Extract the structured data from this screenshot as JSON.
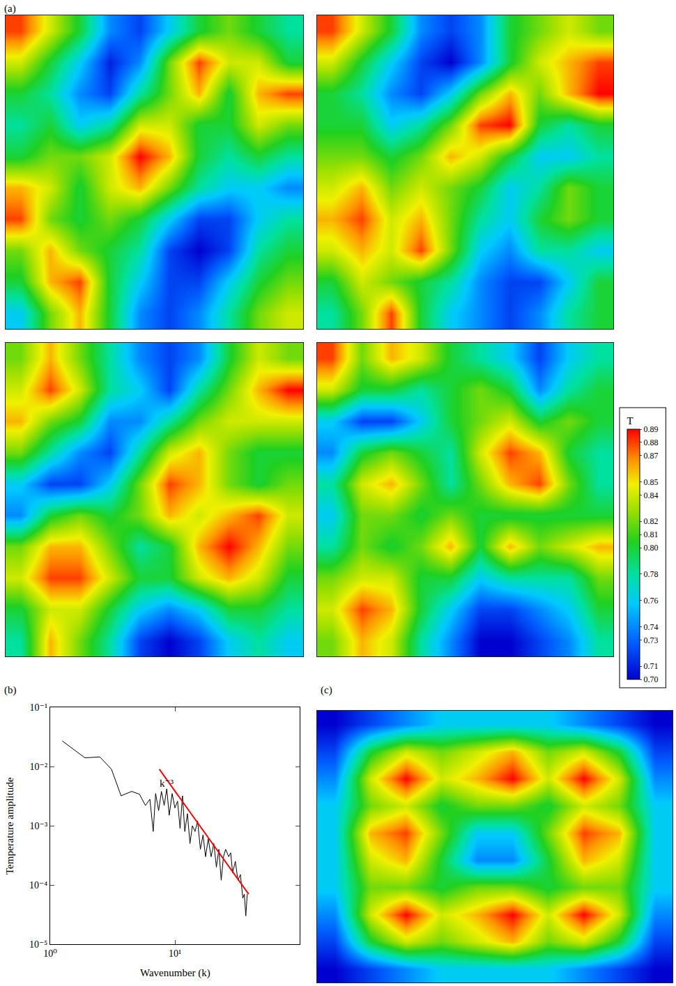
{
  "chart_data": [
    {
      "type": "heatmap",
      "panel": "(a)",
      "tick_labels": false,
      "colorbar": {
        "title": "T",
        "range": [
          0.7,
          0.89
        ],
        "ticks": [
          0.89,
          0.88,
          0.87,
          0.85,
          0.84,
          0.82,
          0.81,
          {
            "value": 0.8,
            "label": "0.80"
          },
          0.78,
          0.76,
          0.74,
          0.73,
          0.71,
          {
            "value": 0.7,
            "label": "0.70"
          }
        ]
      },
      "cells": [
        [
          [
            0.88,
            0.84,
            0.8,
            0.74,
            0.72,
            0.76,
            0.8,
            0.82,
            0.8,
            0.78
          ],
          [
            0.84,
            0.8,
            0.76,
            0.71,
            0.74,
            0.82,
            0.88,
            0.84,
            0.84,
            0.8
          ],
          [
            0.8,
            0.78,
            0.74,
            0.72,
            0.78,
            0.82,
            0.86,
            0.8,
            0.86,
            0.88
          ],
          [
            0.78,
            0.8,
            0.76,
            0.78,
            0.84,
            0.84,
            0.8,
            0.8,
            0.84,
            0.82
          ],
          [
            0.8,
            0.82,
            0.82,
            0.84,
            0.89,
            0.86,
            0.8,
            0.78,
            0.8,
            0.78
          ],
          [
            0.86,
            0.84,
            0.8,
            0.84,
            0.86,
            0.82,
            0.78,
            0.76,
            0.76,
            0.74
          ],
          [
            0.88,
            0.82,
            0.8,
            0.82,
            0.8,
            0.76,
            0.72,
            0.72,
            0.76,
            0.78
          ],
          [
            0.82,
            0.86,
            0.82,
            0.8,
            0.78,
            0.72,
            0.7,
            0.72,
            0.78,
            0.8
          ],
          [
            0.8,
            0.86,
            0.88,
            0.8,
            0.76,
            0.72,
            0.72,
            0.76,
            0.8,
            0.82
          ],
          [
            0.76,
            0.82,
            0.86,
            0.8,
            0.74,
            0.72,
            0.74,
            0.78,
            0.82,
            0.84
          ]
        ],
        [
          [
            0.88,
            0.84,
            0.8,
            0.74,
            0.72,
            0.74,
            0.8,
            0.82,
            0.84,
            0.82
          ],
          [
            0.84,
            0.8,
            0.76,
            0.72,
            0.7,
            0.74,
            0.8,
            0.84,
            0.86,
            0.88
          ],
          [
            0.8,
            0.78,
            0.74,
            0.72,
            0.76,
            0.82,
            0.86,
            0.82,
            0.86,
            0.89
          ],
          [
            0.8,
            0.8,
            0.76,
            0.78,
            0.82,
            0.88,
            0.89,
            0.8,
            0.78,
            0.8
          ],
          [
            0.82,
            0.82,
            0.8,
            0.82,
            0.86,
            0.84,
            0.8,
            0.76,
            0.76,
            0.78
          ],
          [
            0.84,
            0.86,
            0.82,
            0.84,
            0.82,
            0.8,
            0.76,
            0.78,
            0.82,
            0.8
          ],
          [
            0.86,
            0.88,
            0.84,
            0.86,
            0.82,
            0.78,
            0.76,
            0.8,
            0.82,
            0.8
          ],
          [
            0.84,
            0.86,
            0.84,
            0.88,
            0.82,
            0.76,
            0.74,
            0.78,
            0.78,
            0.76
          ],
          [
            0.8,
            0.84,
            0.82,
            0.8,
            0.78,
            0.74,
            0.72,
            0.72,
            0.76,
            0.8
          ],
          [
            0.78,
            0.82,
            0.88,
            0.8,
            0.76,
            0.74,
            0.72,
            0.74,
            0.78,
            0.8
          ]
        ],
        [
          [
            0.82,
            0.86,
            0.82,
            0.78,
            0.74,
            0.72,
            0.74,
            0.8,
            0.84,
            0.82
          ],
          [
            0.84,
            0.88,
            0.84,
            0.78,
            0.76,
            0.72,
            0.78,
            0.82,
            0.86,
            0.89
          ],
          [
            0.86,
            0.82,
            0.8,
            0.74,
            0.74,
            0.78,
            0.82,
            0.84,
            0.84,
            0.84
          ],
          [
            0.82,
            0.78,
            0.74,
            0.72,
            0.78,
            0.84,
            0.86,
            0.82,
            0.8,
            0.8
          ],
          [
            0.76,
            0.72,
            0.72,
            0.76,
            0.82,
            0.88,
            0.86,
            0.82,
            0.8,
            0.82
          ],
          [
            0.74,
            0.8,
            0.82,
            0.8,
            0.82,
            0.86,
            0.84,
            0.86,
            0.88,
            0.84
          ],
          [
            0.82,
            0.86,
            0.86,
            0.82,
            0.78,
            0.8,
            0.86,
            0.89,
            0.86,
            0.82
          ],
          [
            0.84,
            0.88,
            0.88,
            0.84,
            0.8,
            0.8,
            0.84,
            0.86,
            0.84,
            0.8
          ],
          [
            0.8,
            0.84,
            0.84,
            0.8,
            0.76,
            0.74,
            0.76,
            0.8,
            0.8,
            0.78
          ],
          [
            0.78,
            0.86,
            0.82,
            0.78,
            0.72,
            0.7,
            0.72,
            0.76,
            0.78,
            0.76
          ]
        ],
        [
          [
            0.88,
            0.82,
            0.86,
            0.84,
            0.8,
            0.78,
            0.76,
            0.72,
            0.76,
            0.78
          ],
          [
            0.84,
            0.8,
            0.8,
            0.78,
            0.8,
            0.82,
            0.8,
            0.74,
            0.78,
            0.8
          ],
          [
            0.76,
            0.72,
            0.72,
            0.76,
            0.8,
            0.82,
            0.84,
            0.8,
            0.82,
            0.8
          ],
          [
            0.74,
            0.8,
            0.82,
            0.8,
            0.78,
            0.84,
            0.88,
            0.86,
            0.8,
            0.78
          ],
          [
            0.78,
            0.84,
            0.86,
            0.82,
            0.78,
            0.82,
            0.86,
            0.88,
            0.82,
            0.78
          ],
          [
            0.76,
            0.82,
            0.82,
            0.8,
            0.82,
            0.8,
            0.8,
            0.8,
            0.8,
            0.8
          ],
          [
            0.78,
            0.82,
            0.8,
            0.82,
            0.86,
            0.8,
            0.86,
            0.82,
            0.84,
            0.86
          ],
          [
            0.82,
            0.84,
            0.84,
            0.8,
            0.8,
            0.76,
            0.78,
            0.78,
            0.78,
            0.82
          ],
          [
            0.84,
            0.88,
            0.86,
            0.8,
            0.76,
            0.72,
            0.72,
            0.74,
            0.76,
            0.8
          ],
          [
            0.82,
            0.86,
            0.84,
            0.78,
            0.74,
            0.7,
            0.7,
            0.72,
            0.74,
            0.78
          ]
        ]
      ]
    },
    {
      "type": "line",
      "panel": "(b)",
      "log": true,
      "x_label": "Wavenumber (k)",
      "y_label": "Temperature amplitude",
      "xlim": [
        1,
        100
      ],
      "ylim": [
        1e-05,
        0.1
      ],
      "xticks": [
        {
          "value": 1,
          "label": "10⁰"
        },
        {
          "value": 10,
          "label": "10¹"
        }
      ],
      "yticks": [
        {
          "value": 1e-05,
          "label": "10⁻⁵"
        },
        {
          "value": 0.0001,
          "label": "10⁻⁴"
        },
        {
          "value": 0.001,
          "label": "10⁻³"
        },
        {
          "value": 0.01,
          "label": "10⁻²"
        },
        {
          "value": 0.1,
          "label": "10⁻¹"
        }
      ],
      "annotations": [
        {
          "text": "k⁻³",
          "x": 8.6,
          "y": 0.0052
        }
      ],
      "series": [
        {
          "color": "#000000",
          "x": [
            1.25,
            1.9,
            2.5,
            3.1,
            3.7,
            4.5,
            5.2,
            5.8,
            6.3,
            6.7,
            7.0,
            7.4,
            7.8,
            8.2,
            8.6,
            9.0,
            9.5,
            10,
            10.5,
            11,
            11.5,
            12,
            12.6,
            13.2,
            13.8,
            14.5,
            15.2,
            16,
            16.8,
            17.6,
            18.5,
            19.5,
            20.5,
            21.5,
            22.5,
            23.5,
            24.5,
            25.5,
            27,
            28,
            29,
            30.5,
            32,
            33.5,
            35,
            36,
            37,
            38
          ],
          "values": [
            0.027,
            0.014,
            0.0145,
            0.009,
            0.0032,
            0.0038,
            0.0034,
            0.0022,
            0.0028,
            0.0008,
            0.0035,
            0.0018,
            0.0038,
            0.0022,
            0.0042,
            0.0015,
            0.0035,
            0.002,
            0.0026,
            0.0009,
            0.0032,
            0.0008,
            0.0016,
            0.0005,
            0.001,
            0.0008,
            0.0012,
            0.0004,
            0.0007,
            0.0003,
            0.0006,
            0.0003,
            0.0005,
            0.0002,
            0.0004,
            0.00012,
            0.0003,
            0.0004,
            0.0003,
            0.00035,
            0.00016,
            0.00025,
            0.00012,
            0.00015,
            6e-05,
            7e-05,
            3e-05,
            7e-05
          ]
        },
        {
          "color": "#ff0000",
          "x": [
            7.5,
            39
          ],
          "values": [
            0.009,
            7e-05
          ]
        }
      ]
    },
    {
      "type": "heatmap",
      "panel": "(c)",
      "tick_labels": false,
      "zlim": [
        0.7,
        0.89
      ],
      "cells": [
        [
          0.7,
          0.72,
          0.74,
          0.76,
          0.76,
          0.76,
          0.76,
          0.74,
          0.72,
          0.7
        ],
        [
          0.72,
          0.8,
          0.84,
          0.82,
          0.84,
          0.86,
          0.82,
          0.84,
          0.8,
          0.72
        ],
        [
          0.74,
          0.84,
          0.89,
          0.84,
          0.86,
          0.89,
          0.84,
          0.89,
          0.84,
          0.74
        ],
        [
          0.76,
          0.82,
          0.84,
          0.8,
          0.82,
          0.82,
          0.8,
          0.84,
          0.82,
          0.76
        ],
        [
          0.76,
          0.86,
          0.88,
          0.82,
          0.76,
          0.76,
          0.82,
          0.88,
          0.86,
          0.76
        ],
        [
          0.76,
          0.84,
          0.86,
          0.8,
          0.74,
          0.74,
          0.8,
          0.86,
          0.84,
          0.76
        ],
        [
          0.76,
          0.82,
          0.82,
          0.8,
          0.82,
          0.82,
          0.8,
          0.82,
          0.82,
          0.76
        ],
        [
          0.74,
          0.84,
          0.89,
          0.84,
          0.86,
          0.89,
          0.84,
          0.89,
          0.84,
          0.74
        ],
        [
          0.72,
          0.8,
          0.84,
          0.82,
          0.84,
          0.86,
          0.82,
          0.84,
          0.8,
          0.72
        ],
        [
          0.7,
          0.72,
          0.74,
          0.76,
          0.76,
          0.76,
          0.76,
          0.74,
          0.72,
          0.7
        ]
      ]
    }
  ]
}
